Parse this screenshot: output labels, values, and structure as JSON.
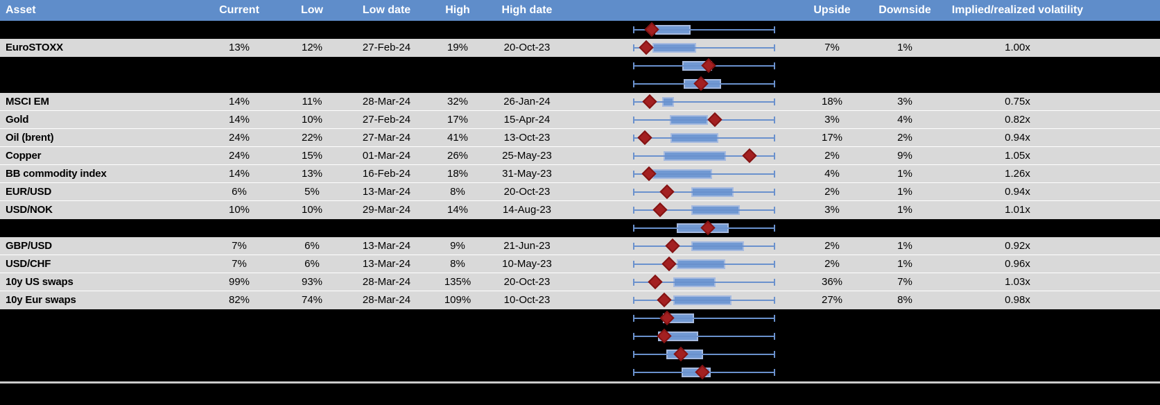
{
  "header": {
    "columns": [
      "Asset",
      "Current",
      "Low",
      "Low date",
      "High",
      "High date",
      "",
      "Upside",
      "Downside",
      "Implied/realized volatility"
    ]
  },
  "colors": {
    "header_bg": "#5f8dca",
    "header_text": "#ffffff",
    "data_row_bg": "#d9d9d9",
    "hidden_row_bg": "#000000",
    "whisker_line": "#6a91cd",
    "box_fill": "#7199d3",
    "box_border": "#a6badf",
    "diamond_fill": "#a32021",
    "separator": "#cccccc"
  },
  "rows": [
    {
      "type": "plot",
      "plot": {
        "box": [
          0.154,
          0.407
        ],
        "diamond": 0.133
      }
    },
    {
      "type": "data",
      "asset": "EuroSTOXX",
      "current": "13%",
      "low": "12%",
      "low_date": "27-Feb-24",
      "high": "19%",
      "high_date": "20-Oct-23",
      "upside": "7%",
      "downside": "1%",
      "implied_realized": "1.00x",
      "plot": {
        "box": [
          0.138,
          0.444
        ],
        "diamond": 0.094
      }
    },
    {
      "type": "plot",
      "plot": {
        "box": [
          0.345,
          0.558
        ],
        "diamond": 0.532
      }
    },
    {
      "type": "plot",
      "plot": {
        "box": [
          0.358,
          0.618
        ],
        "diamond": 0.48
      }
    },
    {
      "type": "data",
      "asset": "MSCI EM",
      "current": "14%",
      "low": "11%",
      "low_date": "28-Mar-24",
      "high": "32%",
      "high_date": "26-Jan-24",
      "upside": "18%",
      "downside": "3%",
      "implied_realized": "0.75x",
      "plot": {
        "box": [
          0.203,
          0.289
        ],
        "diamond": 0.117
      }
    },
    {
      "type": "data",
      "asset": "Gold",
      "current": "14%",
      "low": "10%",
      "low_date": "27-Feb-24",
      "high": "17%",
      "high_date": "15-Apr-24",
      "upside": "3%",
      "downside": "4%",
      "implied_realized": "0.82x",
      "plot": {
        "box": [
          0.26,
          0.528
        ],
        "diamond": 0.574
      }
    },
    {
      "type": "data",
      "asset": "Oil (brent)",
      "current": "24%",
      "low": "22%",
      "low_date": "27-Mar-24",
      "high": "41%",
      "high_date": "13-Oct-23",
      "upside": "17%",
      "downside": "2%",
      "implied_realized": "0.94x",
      "plot": {
        "box": [
          0.265,
          0.602
        ],
        "diamond": 0.081
      }
    },
    {
      "type": "data",
      "asset": "Copper",
      "current": "24%",
      "low": "15%",
      "low_date": "01-Mar-24",
      "high": "26%",
      "high_date": "25-May-23",
      "upside": "2%",
      "downside": "9%",
      "implied_realized": "1.05x",
      "plot": {
        "box": [
          0.216,
          0.655
        ],
        "diamond": 0.821
      }
    },
    {
      "type": "data",
      "asset": "BB commodity index",
      "current": "14%",
      "low": "13%",
      "low_date": "16-Feb-24",
      "high": "18%",
      "high_date": "31-May-23",
      "upside": "4%",
      "downside": "1%",
      "implied_realized": "1.26x",
      "plot": {
        "box": [
          0.138,
          0.558
        ],
        "diamond": 0.114
      }
    },
    {
      "type": "data",
      "asset": "EUR/USD",
      "current": "6%",
      "low": "5%",
      "low_date": "13-Mar-24",
      "high": "8%",
      "high_date": "20-Oct-23",
      "upside": "2%",
      "downside": "1%",
      "implied_realized": "0.94x",
      "plot": {
        "box": [
          0.411,
          0.707
        ],
        "diamond": 0.239
      }
    },
    {
      "type": "data",
      "asset": "USD/NOK",
      "current": "10%",
      "low": "10%",
      "low_date": "29-Mar-24",
      "high": "14%",
      "high_date": "14-Aug-23",
      "upside": "3%",
      "downside": "1%",
      "implied_realized": "1.01x",
      "plot": {
        "box": [
          0.411,
          0.753
        ],
        "diamond": 0.19
      }
    },
    {
      "type": "plot",
      "plot": {
        "box": [
          0.309,
          0.675
        ],
        "diamond": 0.528
      }
    },
    {
      "type": "data",
      "asset": "GBP/USD",
      "current": "7%",
      "low": "6%",
      "low_date": "13-Mar-24",
      "high": "9%",
      "high_date": "21-Jun-23",
      "upside": "2%",
      "downside": "1%",
      "implied_realized": "0.92x",
      "plot": {
        "box": [
          0.411,
          0.78
        ],
        "diamond": 0.28
      }
    },
    {
      "type": "data",
      "asset": "USD/CHF",
      "current": "7%",
      "low": "6%",
      "low_date": "13-Mar-24",
      "high": "8%",
      "high_date": "10-May-23",
      "upside": "2%",
      "downside": "1%",
      "implied_realized": "0.96x",
      "plot": {
        "box": [
          0.309,
          0.65
        ],
        "diamond": 0.252
      }
    },
    {
      "type": "data",
      "asset": "10y US swaps",
      "current": "99%",
      "low": "93%",
      "low_date": "28-Mar-24",
      "high": "135%",
      "high_date": "20-Oct-23",
      "upside": "36%",
      "downside": "7%",
      "implied_realized": "1.03x",
      "plot": {
        "box": [
          0.285,
          0.582
        ],
        "diamond": 0.154
      }
    },
    {
      "type": "data",
      "asset": "10y Eur swaps",
      "current": "82%",
      "low": "74%",
      "low_date": "28-Mar-24",
      "high": "109%",
      "high_date": "10-Oct-23",
      "upside": "27%",
      "downside": "8%",
      "implied_realized": "0.98x",
      "plot": {
        "box": [
          0.281,
          0.691
        ],
        "diamond": 0.22
      }
    },
    {
      "type": "plot",
      "plot": {
        "box": [
          0.211,
          0.431
        ],
        "diamond": 0.239
      }
    },
    {
      "type": "plot",
      "plot": {
        "box": [
          0.176,
          0.46
        ],
        "diamond": 0.22
      }
    },
    {
      "type": "plot",
      "plot": {
        "box": [
          0.233,
          0.493
        ],
        "diamond": 0.338
      }
    },
    {
      "type": "plot",
      "plot": {
        "box": [
          0.341,
          0.545
        ],
        "diamond": 0.488
      }
    }
  ]
}
